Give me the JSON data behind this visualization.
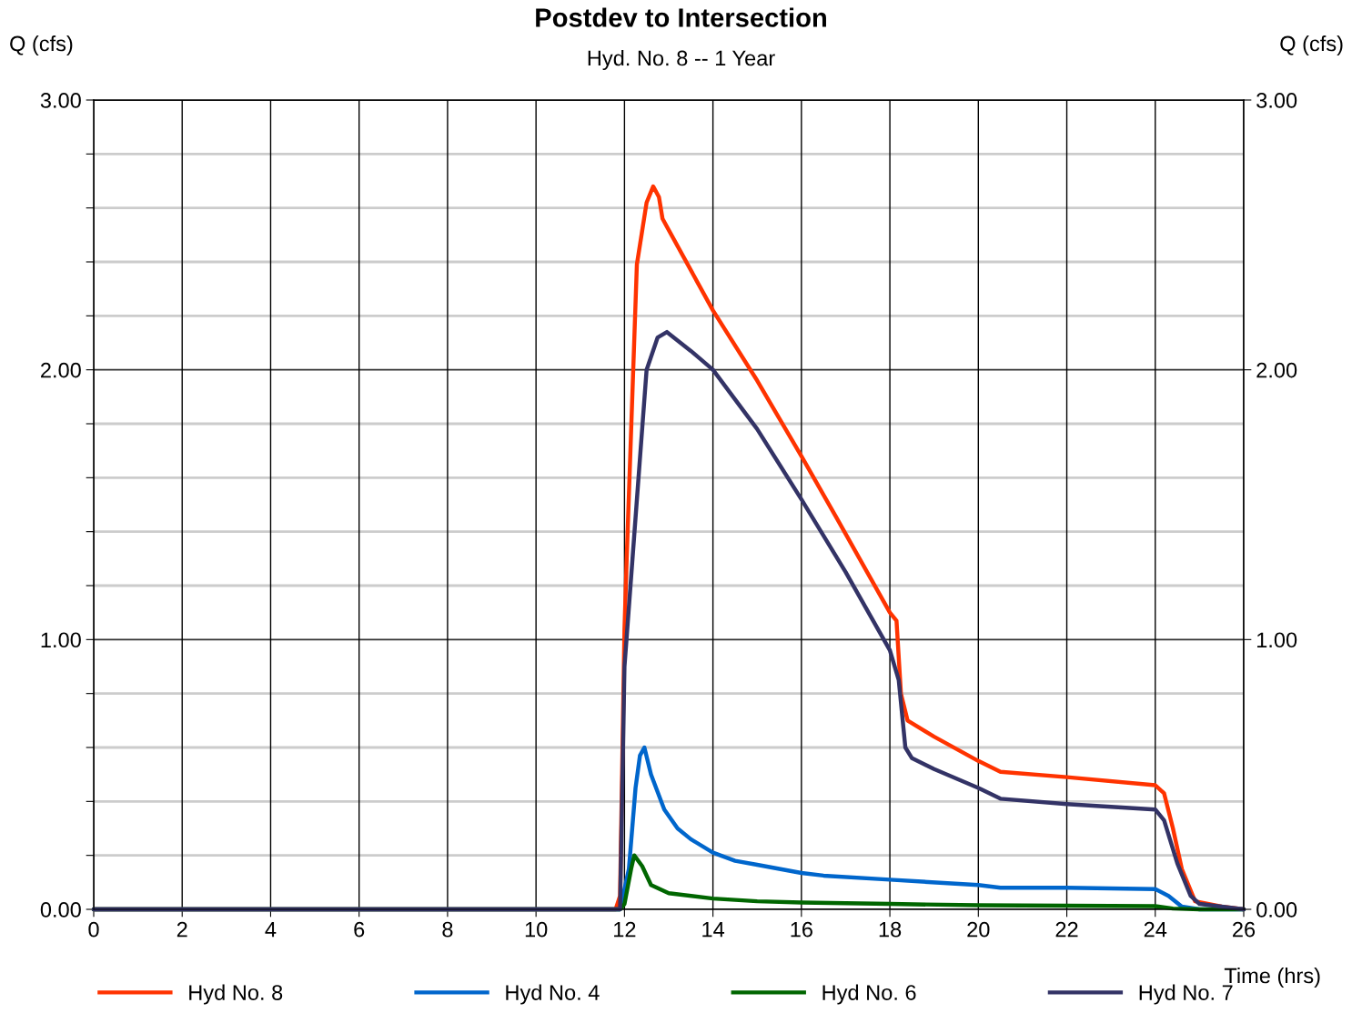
{
  "chart_data": {
    "type": "line",
    "title": "Postdev to Intersection",
    "subtitle": "Hyd. No. 8 -- 1 Year",
    "xlabel": "Time (hrs)",
    "ylabel": "Q (cfs)",
    "y2label": "Q (cfs)",
    "xlim": [
      0,
      26
    ],
    "xticks": [
      0,
      2,
      4,
      6,
      8,
      10,
      12,
      14,
      16,
      18,
      20,
      22,
      24,
      26
    ],
    "ylim": [
      0,
      3
    ],
    "yticks": [
      {
        "value": 0,
        "label": "0.00"
      },
      {
        "value": 0.2,
        "label": null
      },
      {
        "value": 0.4,
        "label": null
      },
      {
        "value": 0.6,
        "label": null
      },
      {
        "value": 0.8,
        "label": null
      },
      {
        "value": 1,
        "label": "1.00"
      },
      {
        "value": 1.2,
        "label": null
      },
      {
        "value": 1.4,
        "label": null
      },
      {
        "value": 1.6,
        "label": null
      },
      {
        "value": 1.8,
        "label": null
      },
      {
        "value": 2,
        "label": "2.00"
      },
      {
        "value": 2.2,
        "label": null
      },
      {
        "value": 2.4,
        "label": null
      },
      {
        "value": 2.6,
        "label": null
      },
      {
        "value": 2.8,
        "label": null
      },
      {
        "value": 3,
        "label": "3.00"
      }
    ],
    "y2lim": [
      0,
      3
    ],
    "y2ticks": [
      {
        "value": 0,
        "label": "0.00"
      },
      {
        "value": 1,
        "label": "1.00"
      },
      {
        "value": 2,
        "label": "2.00"
      },
      {
        "value": 3,
        "label": "3.00"
      }
    ],
    "grid": true,
    "legend": "bottom",
    "marker": "none",
    "line_style": "solid",
    "series": [
      {
        "name": "Hyd No. 8",
        "color": "#ff3300",
        "x": [
          0,
          11.8,
          11.9,
          12.0,
          12.05,
          12.28,
          12.5,
          12.65,
          12.78,
          12.86,
          14,
          15,
          16,
          16.8,
          18.0,
          18.15,
          18.25,
          18.4,
          19,
          20,
          20.5,
          22,
          24,
          24.2,
          24.4,
          24.6,
          24.9,
          25.5,
          26
        ],
        "values": [
          0,
          0,
          0.05,
          1.04,
          1.3,
          2.39,
          2.62,
          2.68,
          2.64,
          2.56,
          2.22,
          1.96,
          1.68,
          1.45,
          1.1,
          1.07,
          0.8,
          0.7,
          0.64,
          0.55,
          0.51,
          0.49,
          0.46,
          0.43,
          0.3,
          0.15,
          0.03,
          0.01,
          0
        ]
      },
      {
        "name": "Hyd No. 4",
        "color": "#0066cc",
        "x": [
          0,
          11.9,
          12.1,
          12.25,
          12.35,
          12.45,
          12.6,
          12.9,
          13.2,
          13.5,
          14,
          14.5,
          15,
          16,
          16.5,
          18,
          20,
          20.5,
          22,
          24,
          24.3,
          24.6,
          25,
          26
        ],
        "values": [
          0,
          0,
          0.15,
          0.45,
          0.57,
          0.6,
          0.5,
          0.37,
          0.3,
          0.26,
          0.21,
          0.18,
          0.165,
          0.135,
          0.125,
          0.11,
          0.09,
          0.08,
          0.08,
          0.075,
          0.05,
          0.01,
          0,
          0
        ]
      },
      {
        "name": "Hyd No. 6",
        "color": "#006600",
        "x": [
          0,
          11.9,
          12.0,
          12.15,
          12.22,
          12.4,
          12.6,
          13,
          14,
          15,
          16,
          18,
          20,
          24,
          24.4,
          25,
          26
        ],
        "values": [
          0,
          0,
          0.02,
          0.15,
          0.2,
          0.16,
          0.09,
          0.06,
          0.04,
          0.03,
          0.025,
          0.02,
          0.015,
          0.012,
          0.003,
          0,
          0
        ]
      },
      {
        "name": "Hyd No. 7",
        "color": "#333366",
        "x": [
          0,
          11.9,
          12.0,
          12.34,
          12.5,
          12.75,
          12.96,
          13.5,
          14,
          15,
          16,
          17,
          18,
          18.2,
          18.35,
          18.5,
          19,
          20,
          20.5,
          22,
          24,
          24.2,
          24.5,
          24.8,
          25,
          26
        ],
        "values": [
          0,
          0,
          0.9,
          1.65,
          2.0,
          2.12,
          2.14,
          2.07,
          2.0,
          1.78,
          1.52,
          1.25,
          0.96,
          0.85,
          0.6,
          0.56,
          0.52,
          0.45,
          0.41,
          0.39,
          0.37,
          0.33,
          0.17,
          0.05,
          0.02,
          0
        ]
      }
    ]
  }
}
